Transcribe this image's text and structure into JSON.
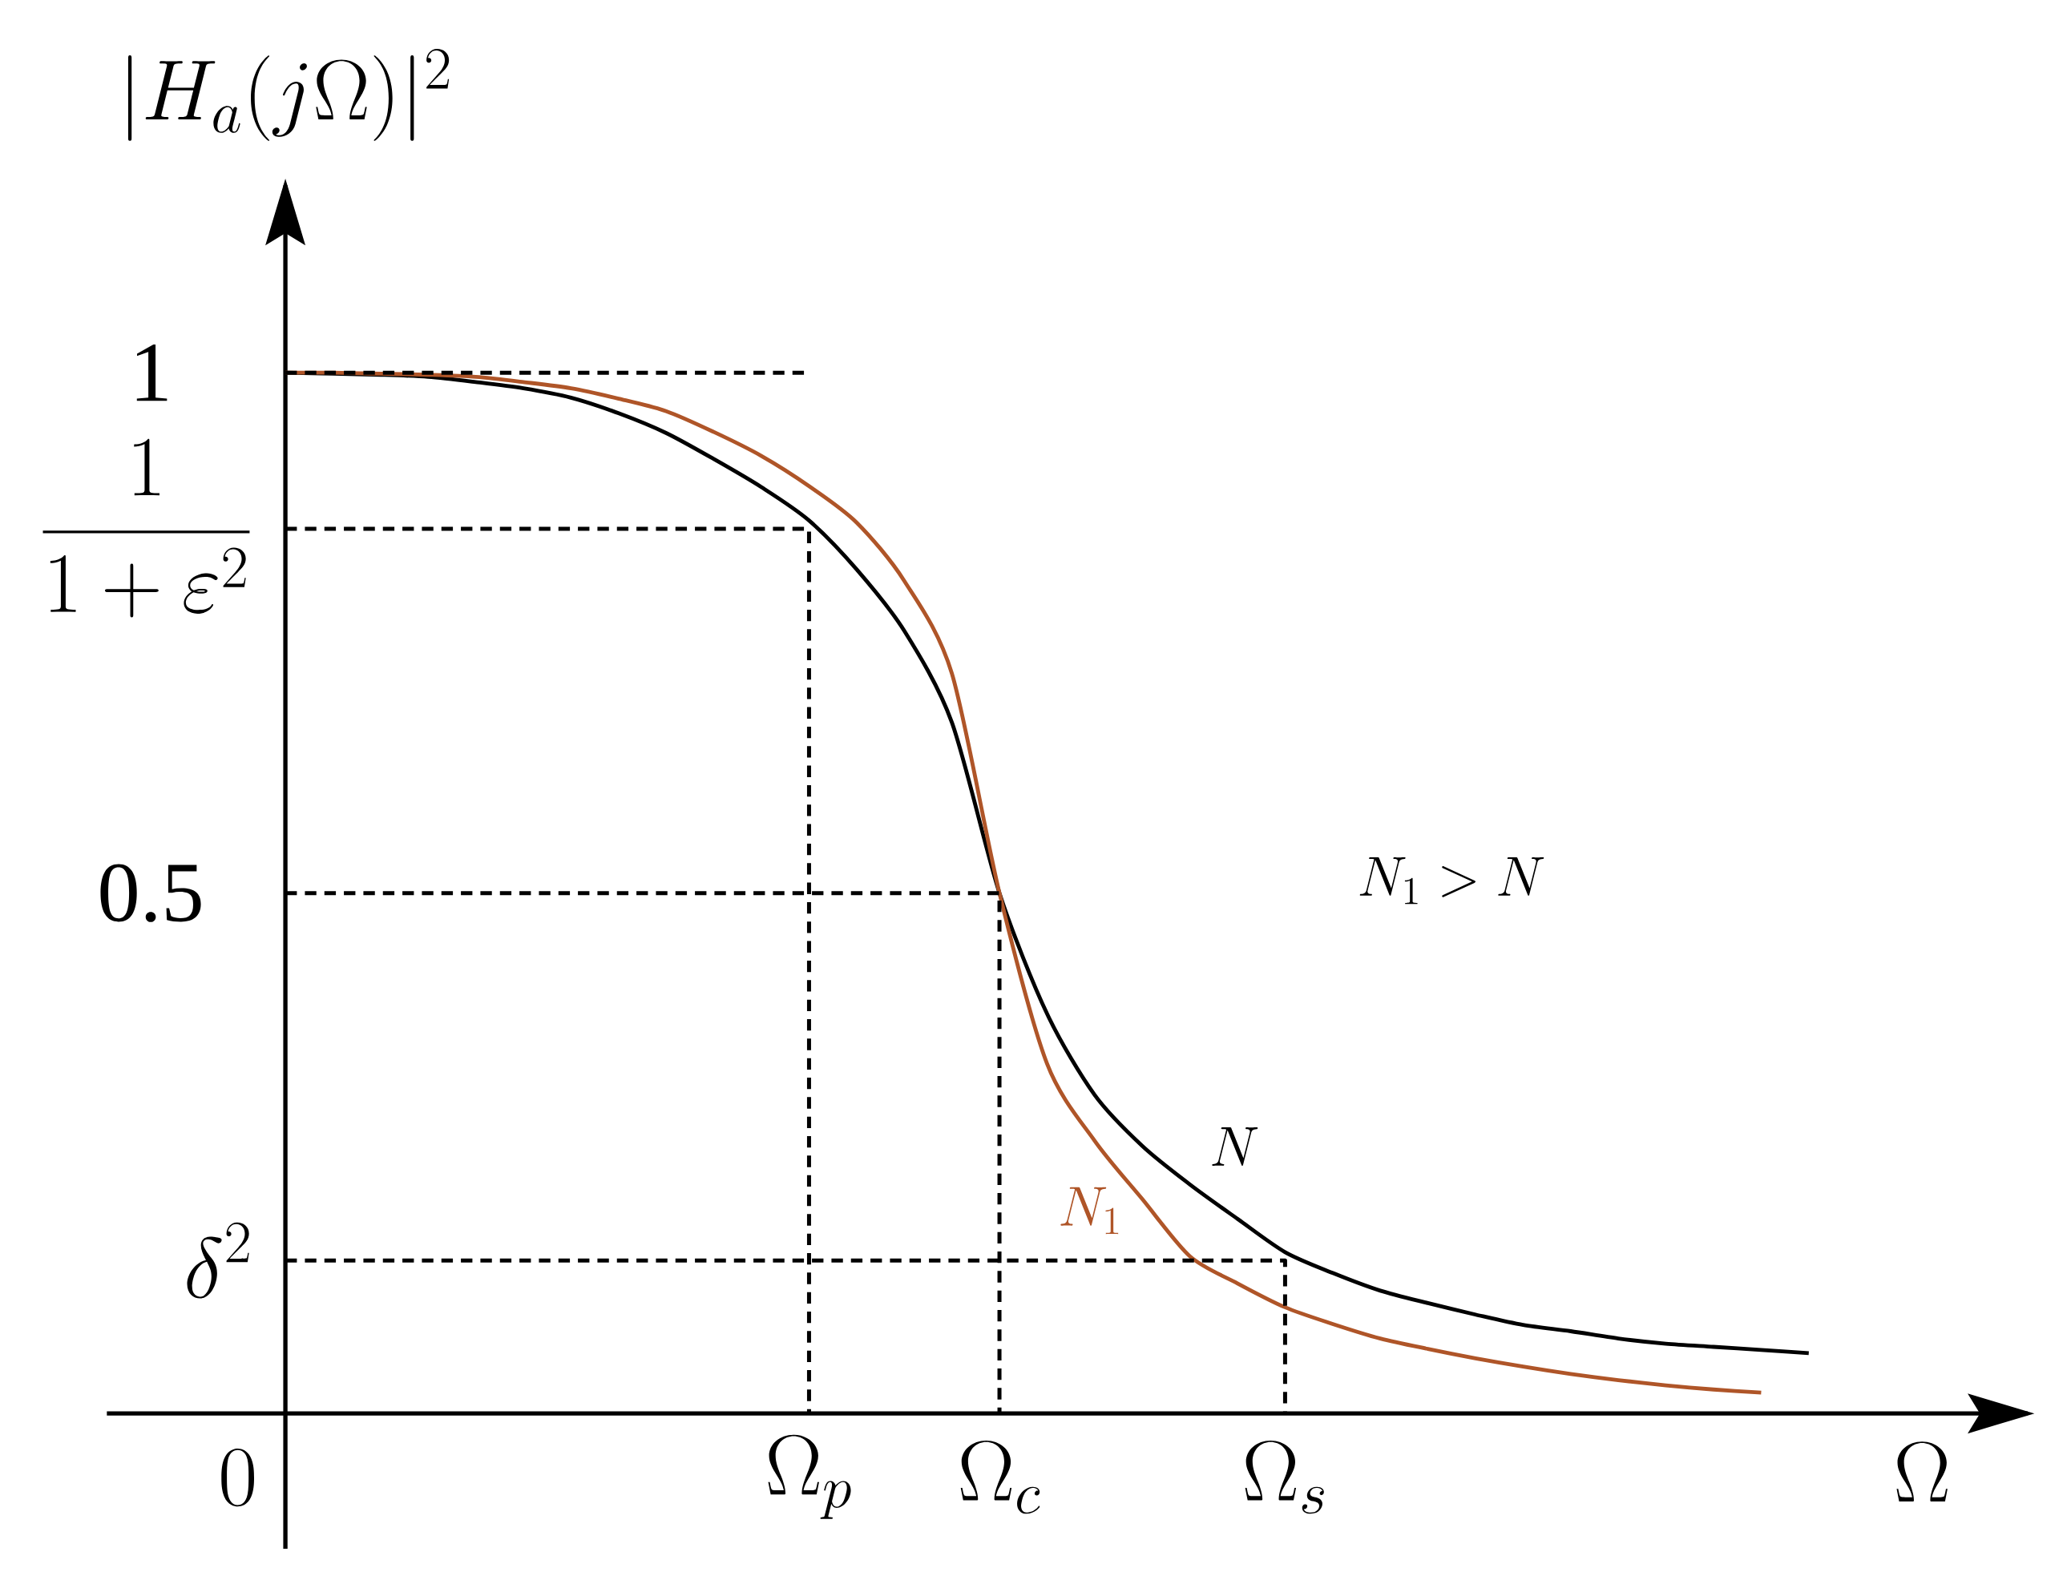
{
  "chart_data": {
    "type": "line",
    "xlabel": "\\Omega",
    "ylabel": "|H_a(j\\Omega)|^2",
    "categories": [
      "0",
      null,
      null,
      null,
      null,
      null,
      null,
      null,
      null,
      null,
      null,
      null,
      "\\Omega_p",
      null,
      null,
      null,
      "\\Omega_c",
      null,
      null,
      null,
      null,
      null,
      "\\Omega_s",
      null,
      null,
      null,
      null,
      null,
      null,
      null,
      null,
      null,
      null,
      null
    ],
    "ylim": [
      -0.13,
      1.18
    ],
    "yticks": [
      0.5,
      1
    ],
    "series": [
      {
        "name": "N",
        "color": "#000000",
        "values": [
          null,
          1,
          0.999,
          0.998,
          0.996,
          0.991,
          0.985,
          0.976,
          0.961,
          0.942,
          0.917,
          0.89,
          0.858,
          0.811,
          0.752,
          0.664,
          0.5,
          0.384,
          0.306,
          0.257,
          0.22,
          0.187,
          0.155,
          0.135,
          0.118,
          0.106,
          0.095,
          0.085,
          0.079,
          0.072,
          0.067,
          0.064,
          0.061,
          0.058
        ]
      },
      {
        "name": "N_1",
        "color": "#af5528",
        "values": [
          null,
          1,
          1,
          0.999,
          0.998,
          0.996,
          0.991,
          0.985,
          0.975,
          0.963,
          0.943,
          0.92,
          0.891,
          0.856,
          0.8,
          0.711,
          0.5,
          0.336,
          0.262,
          0.206,
          0.151,
          0.125,
          0.102,
          0.086,
          0.072,
          0.062,
          0.053,
          0.045,
          0.038,
          0.032,
          0.027,
          0.023,
          0.02,
          null
        ]
      },
      {
        "color": "#000000",
        "line_style": "dashed",
        "values": [
          null,
          1,
          1,
          1,
          1,
          1,
          1,
          1,
          1,
          1,
          1,
          1,
          1,
          null,
          null,
          null,
          null,
          null,
          null,
          null,
          null,
          null,
          null,
          null,
          null,
          null,
          null,
          null,
          null,
          null,
          null,
          null,
          null,
          null
        ]
      },
      {
        "type": "step",
        "name": "\\frac{1}{1+\\varepsilon^2}",
        "color": "#000000",
        "line_style": "dashed",
        "values": [
          null,
          0.85,
          0.85,
          0.85,
          0.85,
          0.85,
          0.85,
          0.85,
          0.85,
          0.85,
          0.85,
          0.85,
          0,
          null,
          null,
          null,
          null,
          null,
          null,
          null,
          null,
          null,
          null,
          null,
          null,
          null,
          null,
          null,
          null,
          null,
          null,
          null,
          null,
          null
        ]
      },
      {
        "type": "step",
        "color": "#000000",
        "line_style": "dashed",
        "values": [
          null,
          0.5,
          0.5,
          0.5,
          0.5,
          0.5,
          0.5,
          0.5,
          0.5,
          0.5,
          0.5,
          0.5,
          0.5,
          0.5,
          0.5,
          0.5,
          0,
          null,
          null,
          null,
          null,
          null,
          null,
          null,
          null,
          null,
          null,
          null,
          null,
          null,
          null,
          null,
          null,
          null
        ]
      },
      {
        "type": "step",
        "name": "\\delta^2",
        "color": "#000000",
        "line_style": "dashed",
        "values": [
          null,
          0.147,
          0.147,
          0.147,
          0.147,
          0.147,
          0.147,
          0.147,
          0.147,
          0.147,
          0.147,
          0.147,
          0.147,
          0.147,
          0.147,
          0.147,
          0.147,
          0.147,
          0.147,
          0.147,
          0.147,
          0.147,
          0,
          null,
          null,
          null,
          null,
          null,
          null,
          null,
          null,
          null,
          null,
          null
        ]
      }
    ],
    "annotations": [
      "N_1 > N"
    ]
  }
}
